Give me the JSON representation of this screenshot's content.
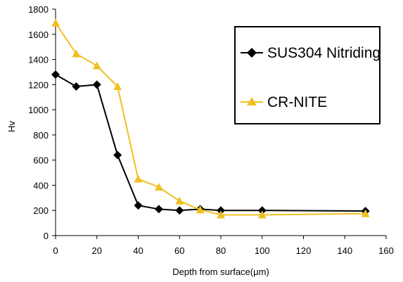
{
  "chart_data": {
    "type": "line",
    "title": "",
    "xlabel": "Depth from surface(μm)",
    "ylabel": "Hv",
    "xlim": [
      0,
      160
    ],
    "ylim": [
      0,
      1800
    ],
    "xticks": [
      0,
      20,
      40,
      60,
      80,
      100,
      120,
      140,
      160
    ],
    "yticks": [
      0,
      200,
      400,
      600,
      800,
      1000,
      1200,
      1400,
      1600,
      1800
    ],
    "grid": false,
    "legend_position": "top-right",
    "series": [
      {
        "name": "SUS304 Nitriding",
        "marker": "diamond",
        "color": "#000000",
        "x": [
          0,
          10,
          20,
          30,
          40,
          50,
          60,
          70,
          80,
          100,
          150
        ],
        "y": [
          1280,
          1185,
          1200,
          640,
          240,
          210,
          200,
          210,
          200,
          200,
          195
        ]
      },
      {
        "name": "CR-NITE",
        "marker": "triangle",
        "color": "#F0C020",
        "x": [
          0,
          10,
          20,
          30,
          40,
          50,
          60,
          70,
          80,
          100,
          150
        ],
        "y": [
          1690,
          1445,
          1350,
          1185,
          450,
          385,
          275,
          205,
          165,
          165,
          175
        ]
      }
    ]
  }
}
